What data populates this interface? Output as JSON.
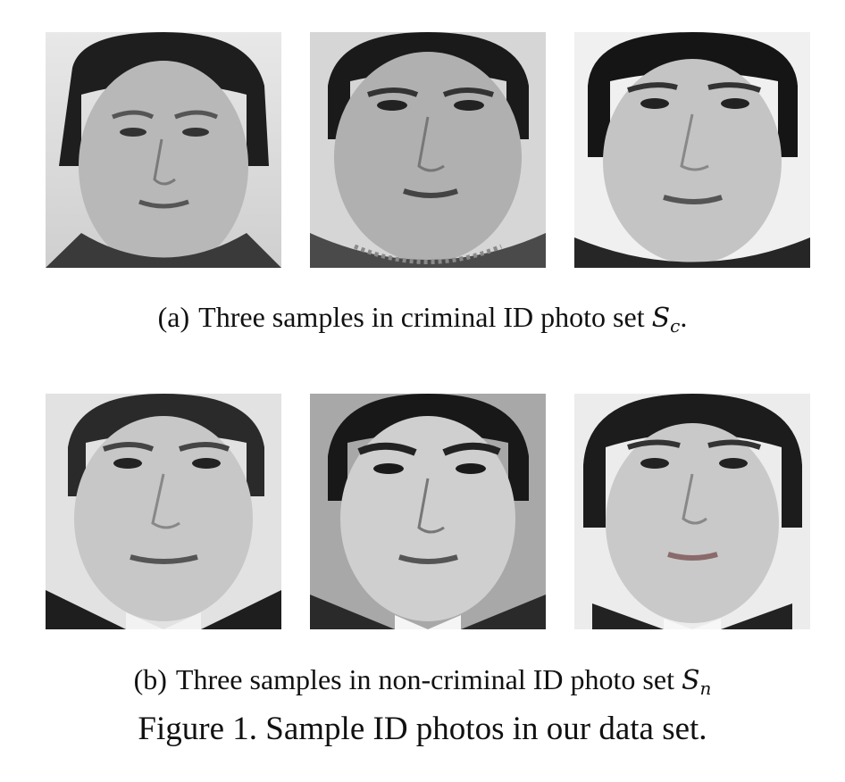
{
  "subfigure_a": {
    "tag": "(a)",
    "text": "Three samples in criminal ID photo set",
    "symbol": "S",
    "subscript": "c",
    "trailing": "."
  },
  "subfigure_b": {
    "tag": "(b)",
    "text": "Three samples in non-criminal ID photo set",
    "symbol": "S",
    "subscript": "n",
    "trailing": ""
  },
  "figure_caption": "Figure 1. Sample ID photos in our data set."
}
